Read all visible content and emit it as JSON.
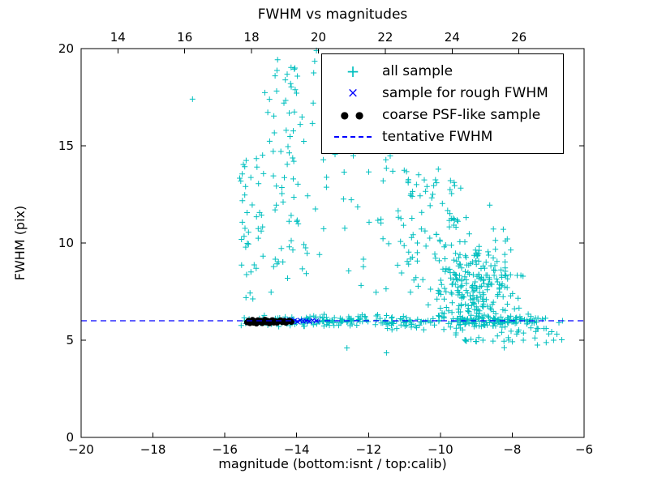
{
  "figure": {
    "background": "#ffffff"
  },
  "chart_data": {
    "type": "scatter",
    "title": "FWHM vs magnitudes",
    "xlabel": "magnitude (bottom:isnt / top:calib)",
    "ylabel": "FWHM (pix)",
    "xlim": [
      -20,
      -6
    ],
    "ylim": [
      0,
      20
    ],
    "x_ticks": [
      -20,
      -18,
      -16,
      -14,
      -12,
      -10,
      -8,
      -6
    ],
    "y_ticks": [
      0,
      5,
      10,
      15,
      20
    ],
    "top_axis": {
      "ticks": [
        14,
        16,
        18,
        20,
        22,
        24,
        26
      ],
      "xlim": [
        12.9,
        27.95
      ]
    },
    "grid": false,
    "legend_position": "upper right",
    "axis_color": "#000000",
    "seed": 1234567,
    "series": [
      {
        "name": "all sample",
        "marker": "+",
        "color": "#00bfbf",
        "clusters": [
          {
            "count": 130,
            "x": {
              "dist": "uniform",
              "min": -15.55,
              "max": -11.5
            },
            "y": {
              "dist": "normal",
              "mean": 6.0,
              "sd": 0.14,
              "min": 5.6,
              "max": 6.45
            }
          },
          {
            "count": 130,
            "x": {
              "dist": "uniform",
              "min": -11.5,
              "max": -7.3
            },
            "y": {
              "dist": "normal",
              "mean": 5.95,
              "sd": 0.18,
              "min": 5.45,
              "max": 6.45
            }
          },
          {
            "count": 40,
            "x": {
              "dist": "uniform",
              "min": -15.6,
              "max": -14.9
            },
            "y": {
              "dist": "uniform",
              "min": 6.8,
              "max": 14.8
            }
          },
          {
            "count": 72,
            "x": {
              "dist": "normal",
              "mean": -14.25,
              "sd": 0.35,
              "min": -15.05,
              "max": -13.4
            },
            "y": {
              "dist": "uniform",
              "min": 7.4,
              "max": 19.5
            }
          },
          {
            "count": 30,
            "x": {
              "dist": "uniform",
              "min": -13.4,
              "max": -11.3
            },
            "y": {
              "dist": "uniform",
              "min": 6.8,
              "max": 15.0
            }
          },
          {
            "count": 90,
            "x": {
              "dist": "uniform",
              "min": -11.2,
              "max": -9.4
            },
            "y": {
              "dist": "uniform",
              "min": 6.6,
              "max": 13.8
            }
          },
          {
            "count": 280,
            "x": {
              "dist": "normal",
              "mean": -9.0,
              "sd": 0.55,
              "min": -10.3,
              "max": -7.7
            },
            "y": {
              "dist": "normal",
              "mean": 7.4,
              "sd": 1.5,
              "min": 4.9,
              "max": 13.6
            }
          },
          {
            "count": 30,
            "x": {
              "dist": "uniform",
              "min": -8.4,
              "max": -6.6
            },
            "y": {
              "dist": "uniform",
              "min": 4.6,
              "max": 6.3
            }
          }
        ],
        "points": [
          [
            -16.9,
            17.4
          ],
          [
            -14.6,
            18.6
          ],
          [
            -14.05,
            19.0
          ],
          [
            -13.5,
            19.35
          ],
          [
            -13.45,
            19.9
          ],
          [
            -13.2,
            17.9
          ],
          [
            -13.9,
            16.1
          ],
          [
            -12.6,
            4.6
          ],
          [
            -11.5,
            4.35
          ],
          [
            -7.3,
            4.75
          ],
          [
            -6.85,
            5.0
          ],
          [
            -6.7,
            5.9
          ],
          [
            -6.6,
            6.0
          ]
        ]
      },
      {
        "name": "sample for rough FWHM",
        "marker": "x",
        "color": "#0000ff",
        "points": [
          [
            -14.45,
            5.98
          ],
          [
            -14.38,
            6.03
          ],
          [
            -14.3,
            5.96
          ],
          [
            -14.24,
            6.0
          ],
          [
            -14.18,
            6.04
          ],
          [
            -14.12,
            5.97
          ],
          [
            -14.05,
            6.01
          ],
          [
            -13.98,
            5.95
          ],
          [
            -13.9,
            6.02
          ],
          [
            -13.82,
            5.98
          ],
          [
            -13.74,
            6.0
          ],
          [
            -13.65,
            5.96
          ],
          [
            -13.55,
            6.02
          ],
          [
            -13.45,
            5.99
          ]
        ]
      },
      {
        "name": "coarse PSF-like sample",
        "marker": "circle",
        "color": "#000000",
        "points": [
          [
            -15.38,
            5.92
          ],
          [
            -15.34,
            6.0
          ],
          [
            -15.3,
            5.88
          ],
          [
            -15.27,
            5.97
          ],
          [
            -15.23,
            6.04
          ],
          [
            -15.2,
            5.9
          ],
          [
            -15.16,
            5.98
          ],
          [
            -15.12,
            5.86
          ],
          [
            -15.08,
            6.02
          ],
          [
            -15.04,
            5.94
          ],
          [
            -15.0,
            6.0
          ],
          [
            -14.96,
            5.88
          ],
          [
            -14.92,
            5.97
          ],
          [
            -14.88,
            6.05
          ],
          [
            -14.84,
            5.92
          ],
          [
            -14.8,
            5.99
          ],
          [
            -14.76,
            5.87
          ],
          [
            -14.72,
            5.96
          ],
          [
            -14.68,
            6.03
          ],
          [
            -14.64,
            5.91
          ],
          [
            -14.6,
            5.98
          ],
          [
            -14.55,
            5.9
          ],
          [
            -14.5,
            5.97
          ],
          [
            -14.45,
            6.02
          ],
          [
            -14.4,
            5.93
          ],
          [
            -14.35,
            5.99
          ],
          [
            -14.3,
            5.9
          ],
          [
            -14.25,
            5.96
          ],
          [
            -14.2,
            6.0
          ],
          [
            -14.15,
            5.94
          ]
        ]
      },
      {
        "name": "tentative FWHM",
        "marker": "dashed-line",
        "color": "#0000ff",
        "y": 6.0
      }
    ]
  }
}
